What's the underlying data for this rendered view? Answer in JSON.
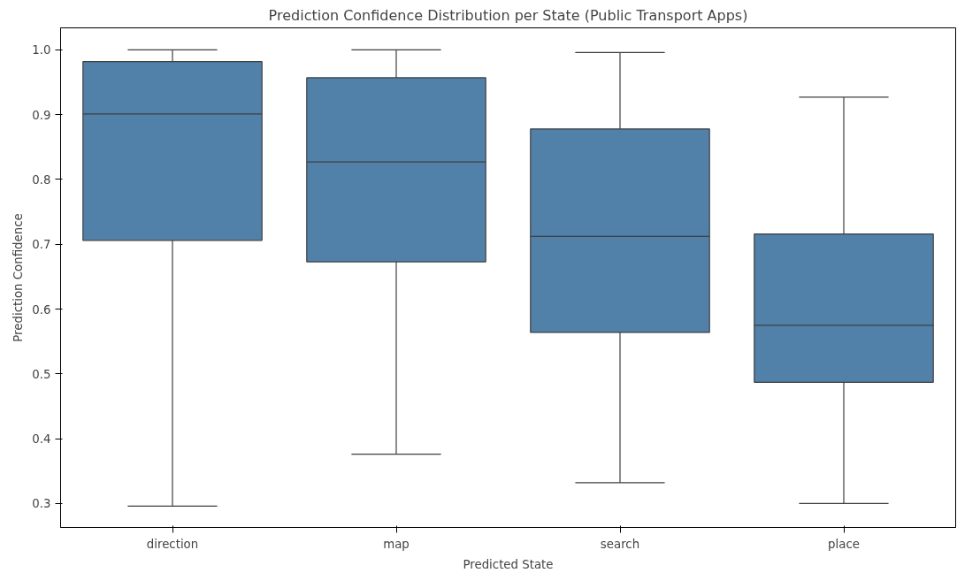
{
  "chart_data": {
    "type": "box",
    "title": "Prediction Confidence Distribution per State (Public Transport Apps)",
    "xlabel": "Predicted State",
    "ylabel": "Prediction Confidence",
    "categories": [
      "direction",
      "map",
      "search",
      "place"
    ],
    "boxes": [
      {
        "low": 0.296,
        "q1": 0.706,
        "median": 0.901,
        "q3": 0.982,
        "high": 1.0
      },
      {
        "low": 0.376,
        "q1": 0.673,
        "median": 0.827,
        "q3": 0.957,
        "high": 1.0
      },
      {
        "low": 0.332,
        "q1": 0.564,
        "median": 0.712,
        "q3": 0.878,
        "high": 0.996
      },
      {
        "low": 0.3,
        "q1": 0.487,
        "median": 0.575,
        "q3": 0.716,
        "high": 0.927
      }
    ],
    "color": "#5181a9",
    "ylim": [
      0.263,
      1.034
    ],
    "yticks": [
      0.3,
      0.4,
      0.5,
      0.6,
      0.7,
      0.8,
      0.9,
      {
        "value": 1,
        "label": "1.0"
      }
    ],
    "grid": false
  }
}
